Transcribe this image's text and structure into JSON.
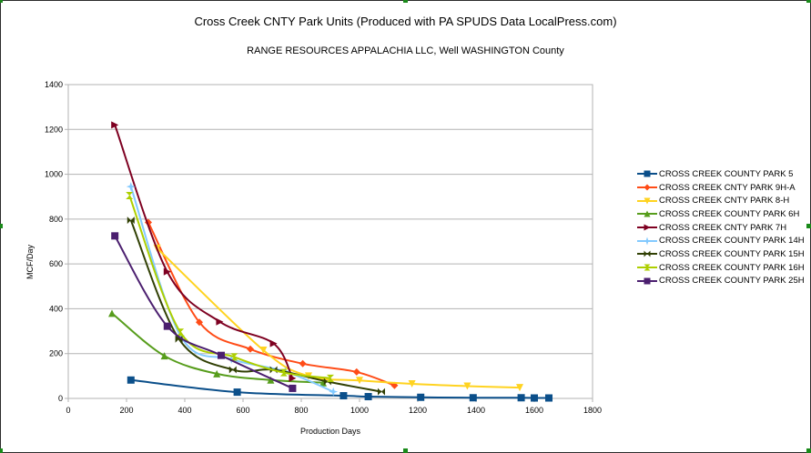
{
  "chart_data": {
    "type": "line",
    "title": "Cross Creek CNTY Park Units (Produced with PA SPUDS Data LocalPress.com)",
    "subtitle": "RANGE RESOURCES APPALACHIA LLC, Well  WASHINGTON County",
    "xlabel": "Production Days",
    "ylabel": "MCF/Day",
    "xlim": [
      0,
      1800
    ],
    "ylim": [
      0,
      1400
    ],
    "xticks": [
      0,
      200,
      400,
      600,
      800,
      1000,
      1200,
      1400,
      1600,
      1800
    ],
    "yticks": [
      0,
      200,
      400,
      600,
      800,
      1000,
      1200,
      1400
    ],
    "grid": true,
    "legend_position": "right",
    "series": [
      {
        "name": "CROSS CREEK COUNTY PARK 5",
        "color": "#0b4f8a",
        "marker": "square",
        "points": [
          [
            215,
            82
          ],
          [
            580,
            28
          ],
          [
            945,
            12
          ],
          [
            1030,
            8
          ],
          [
            1210,
            5
          ],
          [
            1390,
            3
          ],
          [
            1555,
            3
          ],
          [
            1600,
            2
          ],
          [
            1650,
            2
          ]
        ]
      },
      {
        "name": "CROSS CREEK CNTY PARK 9H-A",
        "color": "#ff4c17",
        "marker": "diamond",
        "points": [
          [
            275,
            785
          ],
          [
            450,
            340
          ],
          [
            625,
            220
          ],
          [
            805,
            155
          ],
          [
            990,
            118
          ],
          [
            1120,
            58
          ]
        ]
      },
      {
        "name": "CROSS CREEK CNTY PARK 8-H",
        "color": "#ffd320",
        "marker": "triangle-down",
        "points": [
          [
            305,
            670
          ],
          [
            670,
            215
          ],
          [
            825,
            100
          ],
          [
            1000,
            80
          ],
          [
            1180,
            65
          ],
          [
            1370,
            55
          ],
          [
            1550,
            48
          ]
        ]
      },
      {
        "name": "CROSS CREEK COUNTY PARK 6H",
        "color": "#579d1c",
        "marker": "triangle-up",
        "points": [
          [
            150,
            380
          ],
          [
            330,
            190
          ],
          [
            510,
            110
          ],
          [
            695,
            82
          ],
          [
            875,
            70
          ]
        ]
      },
      {
        "name": "CROSS CREEK CNTY PARK 7H",
        "color": "#7e0021",
        "marker": "triangle-right",
        "points": [
          [
            160,
            1220
          ],
          [
            340,
            565
          ],
          [
            520,
            342
          ],
          [
            705,
            245
          ],
          [
            770,
            90
          ]
        ]
      },
      {
        "name": "CROSS CREEK COUNTY PARK 14H",
        "color": "#83caff",
        "marker": "star",
        "points": [
          [
            215,
            945
          ],
          [
            385,
            280
          ],
          [
            560,
            175
          ],
          [
            745,
            120
          ],
          [
            910,
            30
          ]
        ]
      },
      {
        "name": "CROSS CREEK COUNTY PARK 15H",
        "color": "#314004",
        "marker": "bowtie",
        "points": [
          [
            215,
            795
          ],
          [
            380,
            265
          ],
          [
            565,
            128
          ],
          [
            705,
            128
          ],
          [
            890,
            75
          ],
          [
            1075,
            30
          ]
        ]
      },
      {
        "name": "CROSS CREEK COUNTY PARK 16H",
        "color": "#aecf00",
        "marker": "hourglass",
        "points": [
          [
            210,
            905
          ],
          [
            385,
            295
          ],
          [
            570,
            185
          ],
          [
            740,
            115
          ],
          [
            900,
            90
          ]
        ]
      },
      {
        "name": "CROSS CREEK COUNTY PARK 25H",
        "color": "#4b1f6f",
        "marker": "square",
        "points": [
          [
            160,
            725
          ],
          [
            340,
            322
          ],
          [
            525,
            192
          ],
          [
            770,
            45
          ]
        ]
      }
    ]
  }
}
